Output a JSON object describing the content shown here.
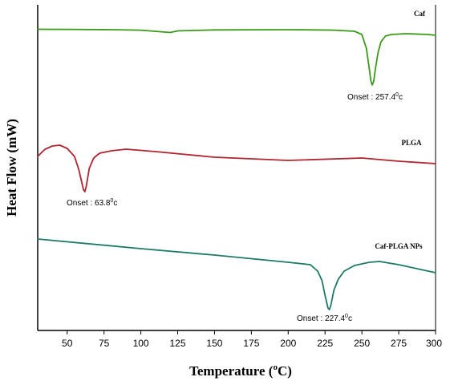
{
  "chart_data": {
    "type": "line",
    "title": "",
    "xlabel": "Temperature (",
    "xlabel_sup": "o",
    "xlabel_tail": "C)",
    "ylabel": "Heat Flow (mW)",
    "xlim": [
      30,
      300
    ],
    "xticks": [
      50,
      75,
      100,
      125,
      150,
      175,
      200,
      225,
      250,
      275,
      300
    ],
    "yticks_shown": false,
    "grid": false,
    "legend": "none",
    "series": [
      {
        "name": "Caf",
        "color": "#3a9a1a",
        "annotation": {
          "prefix": "Onset : 257.4",
          "sup": "0",
          "suffix": "c",
          "x": 257.4
        },
        "points": [
          [
            30,
            36.5
          ],
          [
            50,
            36.6
          ],
          [
            80,
            37.0
          ],
          [
            100,
            37.6
          ],
          [
            120,
            40.5
          ],
          [
            125,
            38.5
          ],
          [
            150,
            37.3
          ],
          [
            200,
            37.0
          ],
          [
            230,
            37.5
          ],
          [
            245,
            39.0
          ],
          [
            250,
            43.0
          ],
          [
            253,
            60.0
          ],
          [
            255,
            85.0
          ],
          [
            256,
            100.0
          ],
          [
            257,
            106.0
          ],
          [
            258,
            102.0
          ],
          [
            259,
            88.0
          ],
          [
            261,
            65.0
          ],
          [
            263,
            52.0
          ],
          [
            266,
            45.0
          ],
          [
            270,
            43.0
          ],
          [
            280,
            42.0
          ],
          [
            295,
            43.0
          ],
          [
            300,
            44.0
          ]
        ]
      },
      {
        "name": "PLGA",
        "color": "#b02530",
        "annotation": {
          "prefix": "Onset : 63.8",
          "sup": "0",
          "suffix": "c",
          "x": 63.8
        },
        "points": [
          [
            30,
            195.0
          ],
          [
            35,
            186.0
          ],
          [
            40,
            182.0
          ],
          [
            45,
            181.0
          ],
          [
            50,
            185.0
          ],
          [
            55,
            195.0
          ],
          [
            58,
            212.0
          ],
          [
            60,
            228.0
          ],
          [
            61,
            236.0
          ],
          [
            62,
            239.0
          ],
          [
            63,
            232.0
          ],
          [
            65,
            210.0
          ],
          [
            68,
            197.0
          ],
          [
            72,
            191.0
          ],
          [
            80,
            188.0
          ],
          [
            90,
            186.0
          ],
          [
            110,
            189.0
          ],
          [
            150,
            196.0
          ],
          [
            200,
            200.0
          ],
          [
            250,
            197.0
          ],
          [
            275,
            201.0
          ],
          [
            300,
            204.0
          ]
        ]
      },
      {
        "name": "Caf-PLGA NPs",
        "color": "#1d7a66",
        "annotation": {
          "prefix": "Onset : 227.4",
          "sup": "0",
          "suffix": "c",
          "x": 227.4
        },
        "points": [
          [
            30,
            298.0
          ],
          [
            100,
            310.0
          ],
          [
            150,
            318.0
          ],
          [
            200,
            327.0
          ],
          [
            215,
            330.0
          ],
          [
            220,
            338.0
          ],
          [
            223,
            350.0
          ],
          [
            225,
            368.0
          ],
          [
            227,
            384.0
          ],
          [
            228,
            386.0
          ],
          [
            229,
            380.0
          ],
          [
            231,
            362.0
          ],
          [
            234,
            348.0
          ],
          [
            238,
            338.0
          ],
          [
            245,
            331.0
          ],
          [
            255,
            327.0
          ],
          [
            262,
            326.0
          ],
          [
            275,
            330.0
          ],
          [
            290,
            336.0
          ],
          [
            300,
            340.0
          ]
        ]
      }
    ]
  }
}
